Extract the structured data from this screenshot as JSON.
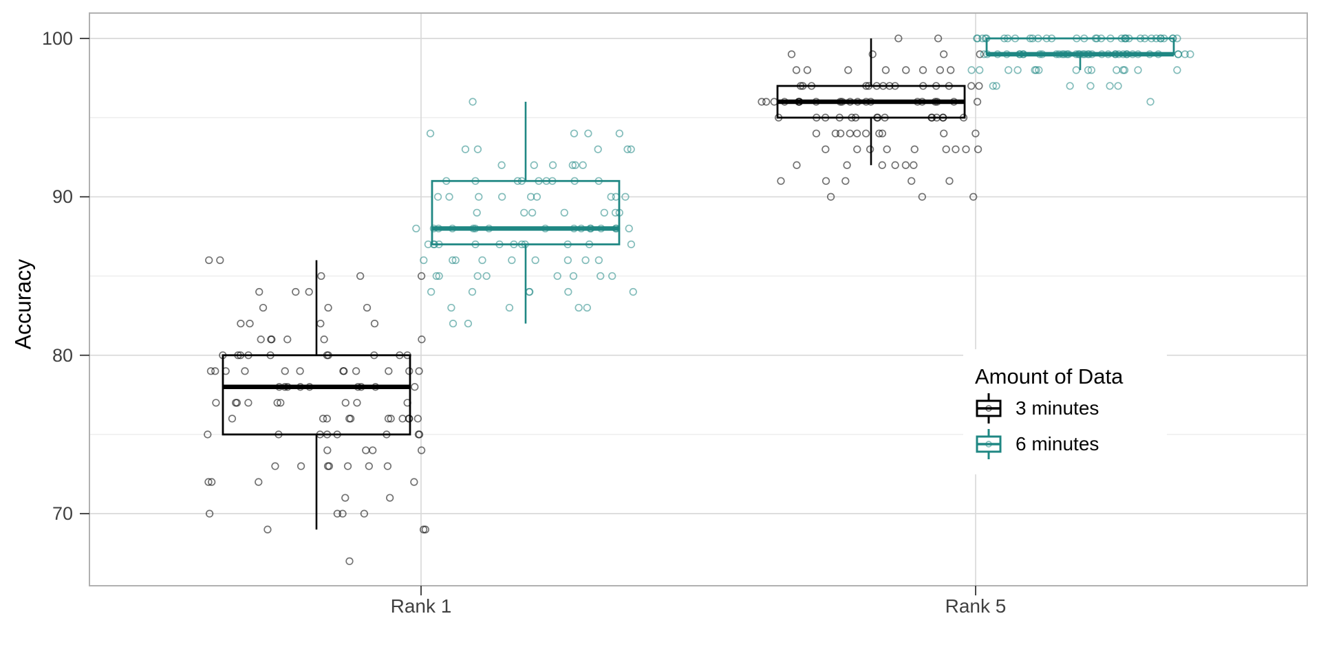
{
  "chart_data": {
    "type": "boxplot_with_jittered_points",
    "title": "",
    "xlabel": "",
    "ylabel": "Accuracy",
    "x_categories": [
      "Rank 1",
      "Rank 5"
    ],
    "y_ticks": [
      100,
      90,
      80,
      70
    ],
    "y_minor_ticks": [
      95,
      85,
      75
    ],
    "ylim": [
      65.45,
      101.6
    ],
    "grid": "major-and-minor-horizontal, major-vertical-at-categories",
    "legend": {
      "title": "Amount of Data",
      "position": "inside-right"
    },
    "colors": {
      "series_1": "#000000",
      "series_2": "#1F8783",
      "grid_major": "#d9d9d9",
      "grid_minor": "#ececec",
      "panel_border": "#b0b0b0",
      "axis_text": "#404040"
    },
    "series": [
      {
        "name": "3 minutes",
        "color": "#000000",
        "boxes": [
          {
            "category": "Rank 1",
            "q1": 75,
            "median": 78,
            "q3": 80,
            "whisker_low": 69,
            "whisker_high": 86
          },
          {
            "category": "Rank 5",
            "q1": 95,
            "median": 96,
            "q3": 97,
            "whisker_low": 92,
            "whisker_high": 100
          }
        ],
        "points_histogram": {
          "Rank 1": [
            [
              86,
              2
            ],
            [
              85,
              3
            ],
            [
              84,
              3
            ],
            [
              83,
              3
            ],
            [
              82,
              4
            ],
            [
              81,
              6
            ],
            [
              80,
              10
            ],
            [
              79,
              12
            ],
            [
              78,
              9
            ],
            [
              77,
              9
            ],
            [
              76,
              11
            ],
            [
              75,
              8
            ],
            [
              74,
              4
            ],
            [
              73,
              7
            ],
            [
              72,
              4
            ],
            [
              71,
              2
            ],
            [
              70,
              4
            ],
            [
              69,
              3
            ],
            [
              67,
              1
            ]
          ],
          "Rank 5": [
            [
              100,
              2
            ],
            [
              99,
              4
            ],
            [
              98,
              8
            ],
            [
              97,
              14
            ],
            [
              96,
              20
            ],
            [
              95,
              15
            ],
            [
              94,
              10
            ],
            [
              93,
              9
            ],
            [
              92,
              6
            ],
            [
              91,
              5
            ],
            [
              90,
              3
            ]
          ]
        }
      },
      {
        "name": "6 minutes",
        "color": "#1F8783",
        "boxes": [
          {
            "category": "Rank 1",
            "q1": 87,
            "median": 88,
            "q3": 91,
            "whisker_low": 82,
            "whisker_high": 96
          },
          {
            "category": "Rank 5",
            "q1": 99,
            "median": 99,
            "q3": 100,
            "whisker_low": 98,
            "whisker_high": 100
          }
        ],
        "points_histogram": {
          "Rank 1": [
            [
              96,
              1
            ],
            [
              94,
              4
            ],
            [
              93,
              5
            ],
            [
              92,
              6
            ],
            [
              91,
              9
            ],
            [
              90,
              9
            ],
            [
              89,
              7
            ],
            [
              88,
              16
            ],
            [
              87,
              12
            ],
            [
              86,
              9
            ],
            [
              85,
              8
            ],
            [
              84,
              6
            ],
            [
              83,
              4
            ],
            [
              82,
              2
            ]
          ],
          "Rank 5": [
            [
              100,
              34
            ],
            [
              99,
              40
            ],
            [
              98,
              15
            ],
            [
              97,
              6
            ],
            [
              96,
              1
            ]
          ]
        }
      }
    ]
  }
}
